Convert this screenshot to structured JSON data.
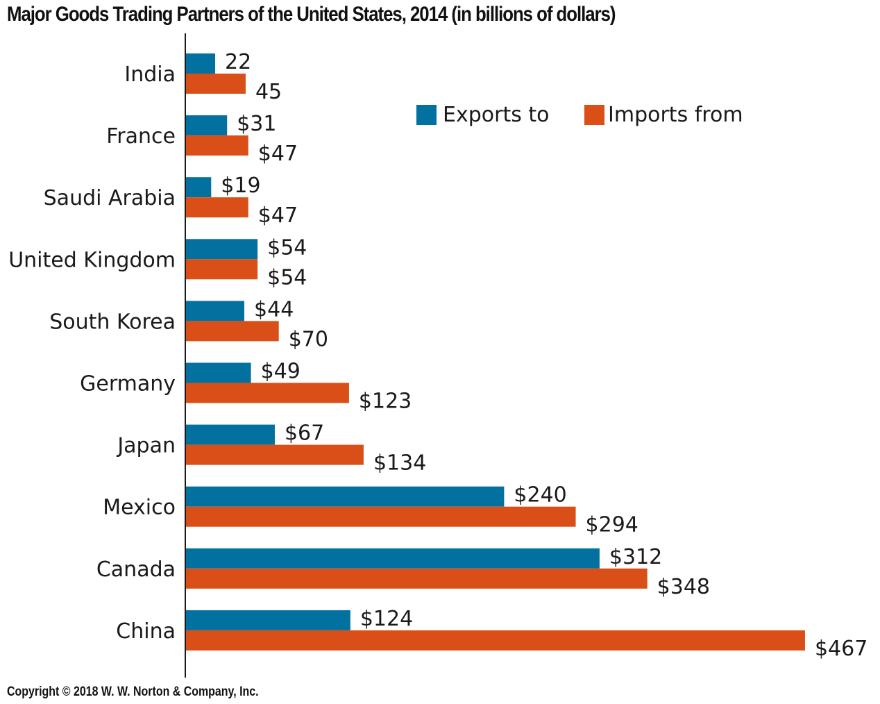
{
  "title": "Major Goods Trading Partners of the United States, 2014 (in billions of dollars)",
  "copyright": "Copyright © 2018 W. W. Norton & Company, Inc.",
  "chart_data": {
    "type": "bar",
    "orientation": "horizontal",
    "title": "Major Goods Trading Partners of the United States, 2014 (in billions of dollars)",
    "xlabel": "",
    "ylabel": "",
    "xlim": [
      0,
      470
    ],
    "grid": false,
    "legend_position": "top-right",
    "categories": [
      "India",
      "France",
      "Saudi Arabia",
      "United Kingdom",
      "South Korea",
      "Germany",
      "Japan",
      "Mexico",
      "Canada",
      "China"
    ],
    "series": [
      {
        "name": "Exports to",
        "color": "#0271a0",
        "values": [
          22,
          31,
          19,
          54,
          44,
          49,
          67,
          240,
          312,
          124
        ],
        "labels": [
          "22",
          "$31",
          "$19",
          "$54",
          "$44",
          "$49",
          "$67",
          "$240",
          "$312",
          "$124"
        ]
      },
      {
        "name": "Imports from",
        "color": "#d94f17",
        "values": [
          45,
          47,
          47,
          54,
          70,
          123,
          134,
          294,
          348,
          467
        ],
        "labels": [
          "45",
          "$47",
          "$47",
          "$54",
          "$70",
          "$123",
          "$134",
          "$294",
          "$348",
          "$467"
        ]
      }
    ]
  }
}
